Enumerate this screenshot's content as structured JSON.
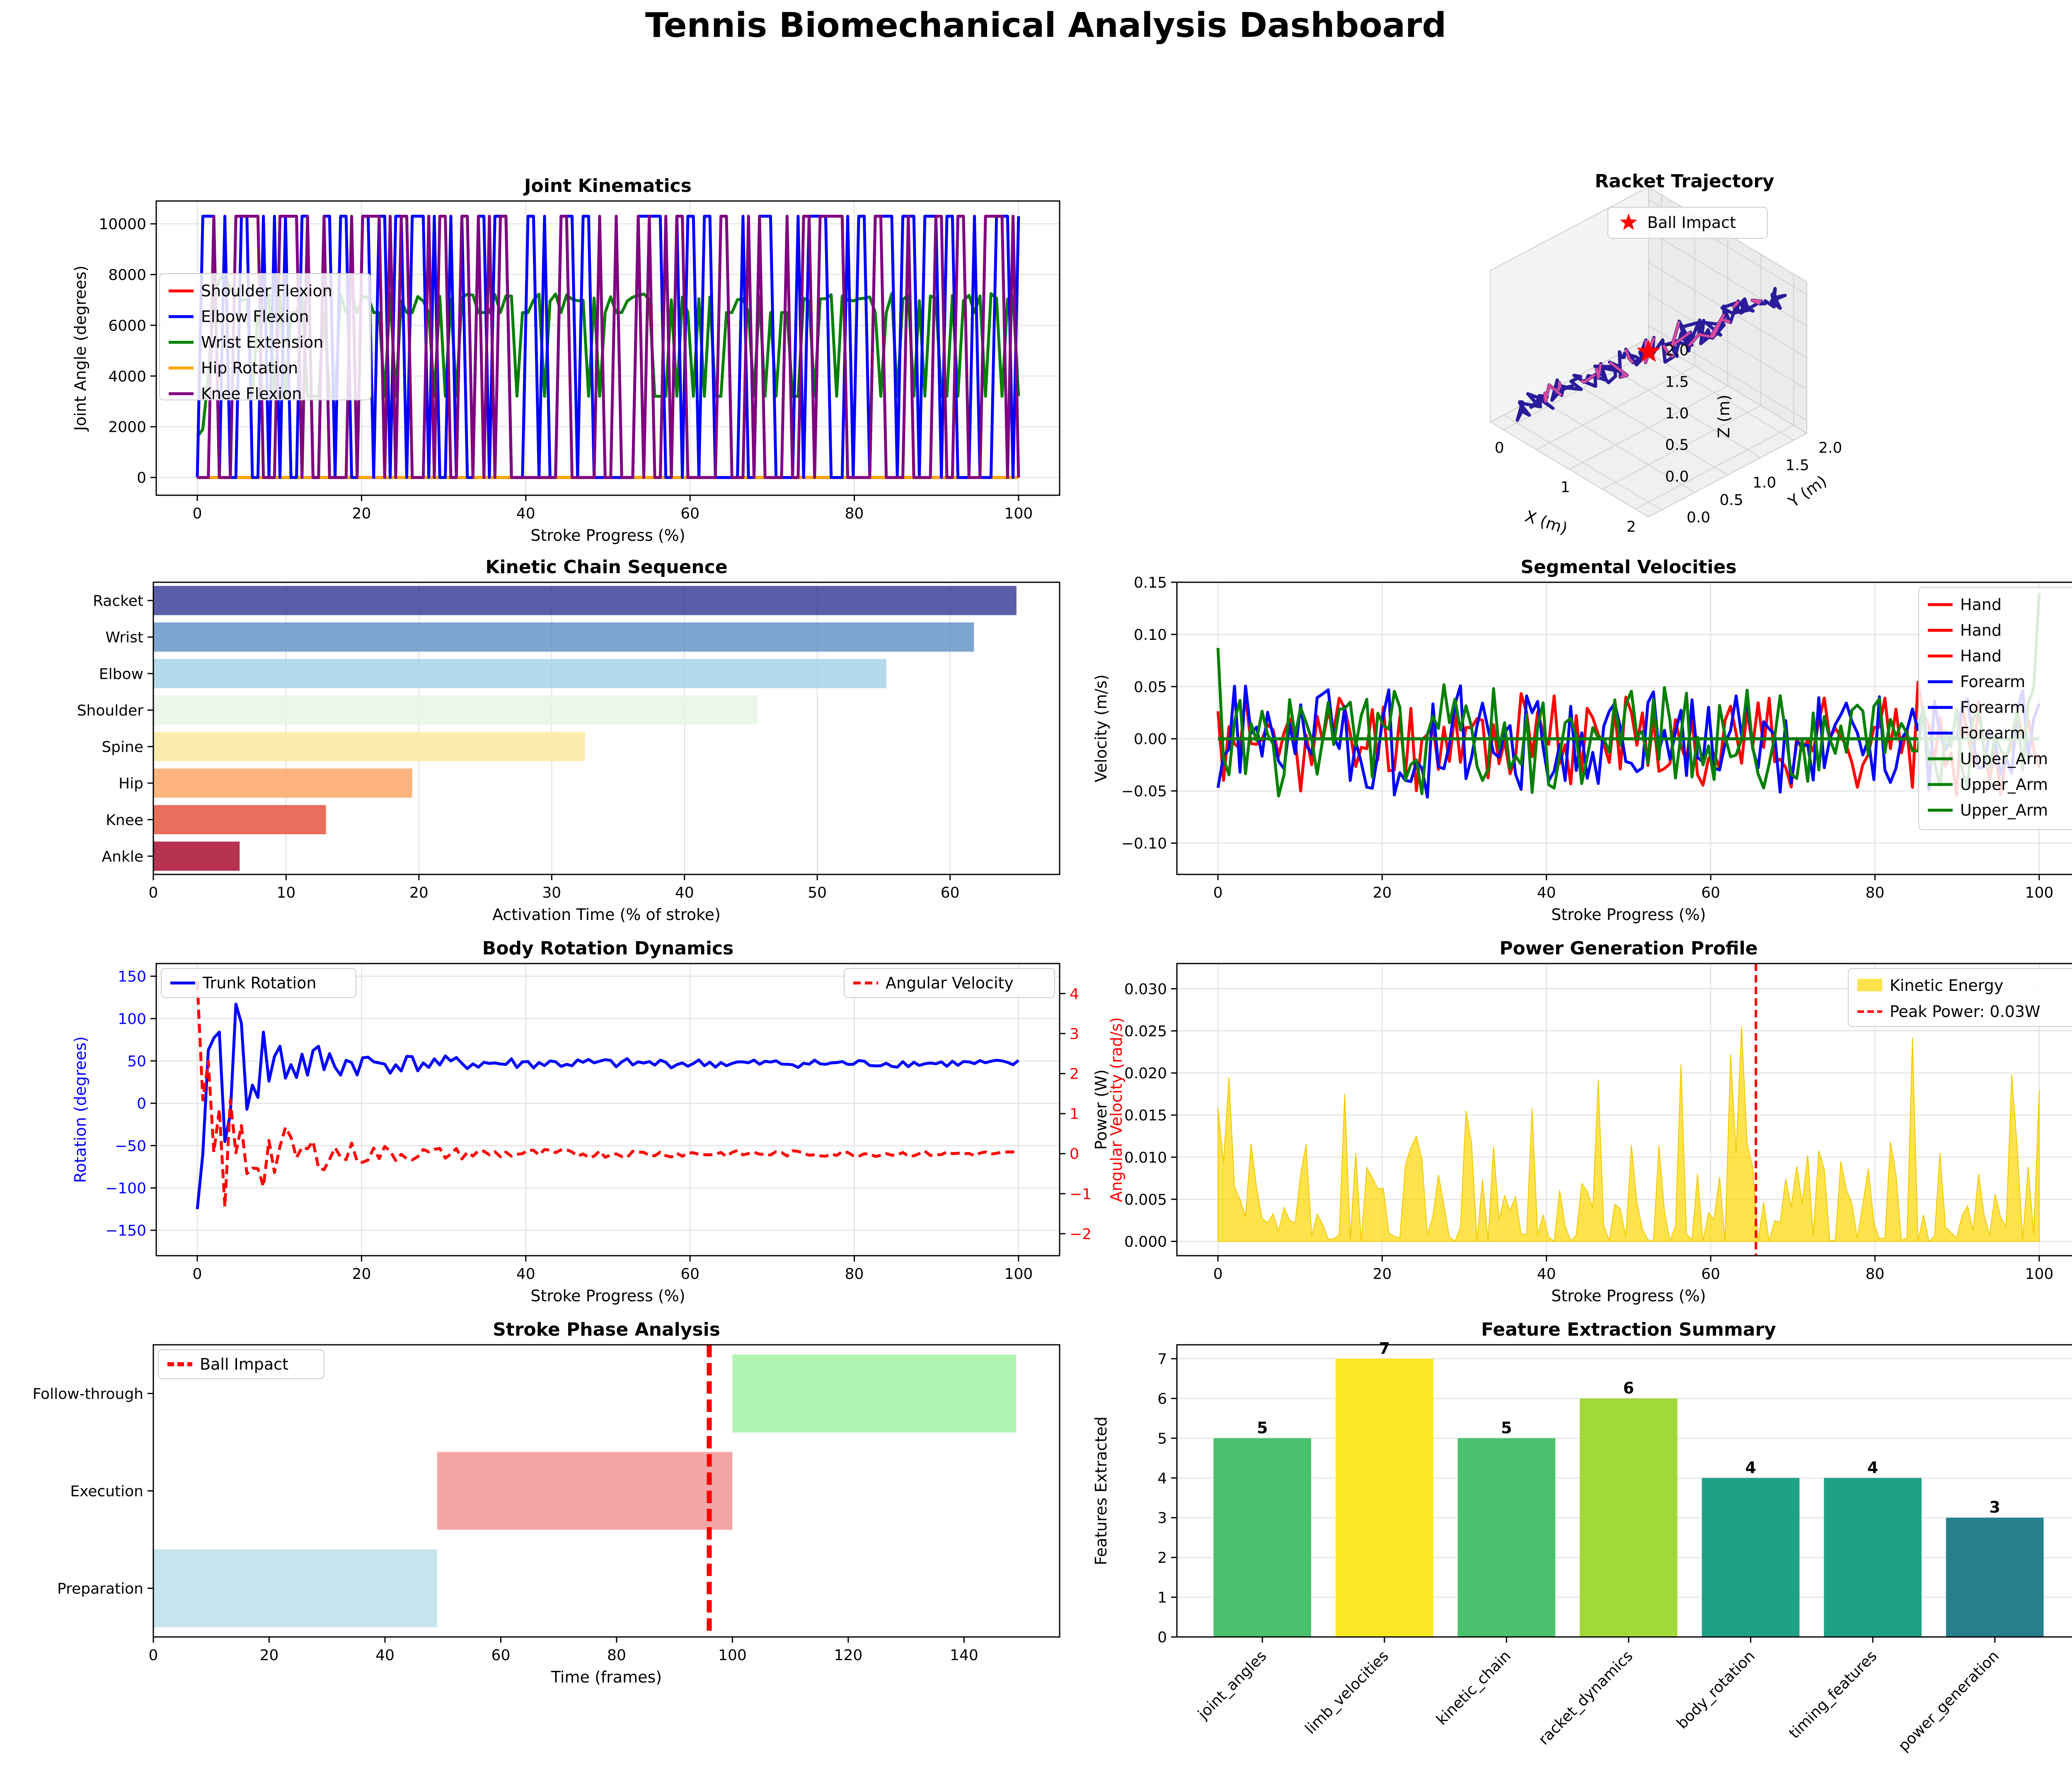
{
  "page_title": "Tennis Biomechanical Analysis Dashboard",
  "chart_data": [
    {
      "id": "joint",
      "type": "line",
      "title": "Joint Kinematics",
      "xlabel": "Stroke Progress (%)",
      "ylabel": "Joint Angle (degrees)",
      "xlim": [
        -5,
        105
      ],
      "ylim": [
        -700,
        10900
      ],
      "xticks": [
        0,
        20,
        40,
        60,
        80,
        100
      ],
      "yticks": [
        0,
        2000,
        4000,
        6000,
        8000,
        10000
      ],
      "grid": true,
      "legend_position": "center-left",
      "n_points": 150,
      "series": [
        {
          "name": "Shoulder Flexion",
          "color": "#ff0000",
          "levels": [
            0
          ],
          "pattern_seed": 1
        },
        {
          "name": "Elbow Flexion",
          "color": "#0000ff",
          "levels": [
            0,
            10300
          ],
          "pattern_seed": 7
        },
        {
          "name": "Wrist Extension",
          "color": "#008000",
          "levels": [
            3200,
            6500,
            7100
          ],
          "start": [
            1600,
            1900,
            4000,
            7000,
            7800,
            8000,
            7400
          ],
          "pattern_seed": 13
        },
        {
          "name": "Hip Rotation",
          "color": "#ffa500",
          "levels": [
            0
          ],
          "pattern_seed": 3
        },
        {
          "name": "Knee Flexion",
          "color": "#800080",
          "levels": [
            0,
            10300
          ],
          "pattern_seed": 29
        }
      ]
    },
    {
      "id": "trajectory",
      "type": "scatter3d",
      "title": "Racket Trajectory",
      "xlabel": "X (m)",
      "ylabel": "Y (m)",
      "zlabel": "Z (m)",
      "xticks": [
        0,
        1,
        2
      ],
      "yticks": [
        0.0,
        0.5,
        1.0,
        1.5,
        2.0
      ],
      "zticks": [
        0.0,
        0.5,
        1.0,
        1.5,
        2.0
      ],
      "legend": [
        "Ball Impact"
      ],
      "impact_point": {
        "x": 1.0,
        "y": 1.0,
        "z": 1.0
      },
      "n_points": 150,
      "path_color": "#2a1b9a",
      "highlight_color": "#d94a9a",
      "impact_color": "#ff0000"
    },
    {
      "id": "chain",
      "type": "bar",
      "orientation": "horizontal",
      "title": "Kinetic Chain Sequence",
      "xlabel": "Activation Time (% of stroke)",
      "categories": [
        "Ankle",
        "Knee",
        "Hip",
        "Spine",
        "Shoulder",
        "Elbow",
        "Wrist",
        "Racket"
      ],
      "values": [
        6.5,
        13,
        19.5,
        32.5,
        45.5,
        55.2,
        61.8,
        65
      ],
      "colors": [
        "#a50026",
        "#e34a33",
        "#fca35d",
        "#fee79a",
        "#e6f5e3",
        "#a2d1e6",
        "#5b8fc6",
        "#313695"
      ],
      "xlim": [
        0,
        68.25
      ],
      "xticks": [
        0,
        10,
        20,
        30,
        40,
        50,
        60
      ],
      "grid": true
    },
    {
      "id": "velocities",
      "type": "line",
      "title": "Segmental Velocities",
      "xlabel": "Stroke Progress (%)",
      "ylabel": "Velocity (m/s)",
      "xlim": [
        -5,
        105
      ],
      "ylim": [
        -0.13,
        0.15
      ],
      "xticks": [
        0,
        20,
        40,
        60,
        80,
        100
      ],
      "yticks": [
        -0.1,
        -0.05,
        0.0,
        0.05,
        0.1,
        0.15
      ],
      "grid": true,
      "legend_position": "top-right",
      "n_points": 150,
      "series": [
        {
          "name": "Hand",
          "color": "#ff0000",
          "amplitude": 0.04,
          "pattern_seed": 11,
          "flat": false
        },
        {
          "name": "Hand",
          "color": "#ff0000",
          "amplitude": 0.0,
          "pattern_seed": 12,
          "flat": true
        },
        {
          "name": "Hand",
          "color": "#ff0000",
          "amplitude": 0.0,
          "pattern_seed": 13,
          "flat": true
        },
        {
          "name": "Forearm",
          "color": "#0000ff",
          "amplitude": 0.045,
          "pattern_seed": 21,
          "flat": false
        },
        {
          "name": "Forearm",
          "color": "#0000ff",
          "amplitude": 0.0,
          "pattern_seed": 22,
          "flat": true
        },
        {
          "name": "Forearm",
          "color": "#0000ff",
          "amplitude": 0.0,
          "pattern_seed": 23,
          "flat": true
        },
        {
          "name": "Upper_Arm",
          "color": "#008000",
          "amplitude": 0.045,
          "pattern_seed": 31,
          "flat": false
        },
        {
          "name": "Upper_Arm",
          "color": "#008000",
          "amplitude": 0.0,
          "pattern_seed": 32,
          "flat": true
        },
        {
          "name": "Upper_Arm",
          "color": "#008000",
          "amplitude": 0.0,
          "pattern_seed": 33,
          "flat": true
        }
      ]
    },
    {
      "id": "rotation",
      "type": "line",
      "title": "Body Rotation Dynamics",
      "xlabel": "Stroke Progress (%)",
      "ylabel": "Rotation (degrees)",
      "ylabel_right": "Angular Velocity (rad/s)",
      "xlim": [
        -5,
        105
      ],
      "ylim": [
        -180,
        165
      ],
      "ylim_right": [
        -2.55,
        4.75
      ],
      "xticks": [
        0,
        20,
        40,
        60,
        80,
        100
      ],
      "yticks": [
        -150,
        -100,
        -50,
        0,
        50,
        100,
        150
      ],
      "yticks_right": [
        -2,
        -1,
        0,
        1,
        2,
        3,
        4
      ],
      "grid": true,
      "n_points": 150,
      "series": [
        {
          "name": "Trunk Rotation",
          "color": "#0000ff",
          "axis": "left",
          "settle": 47,
          "start": -125
        },
        {
          "name": "Angular Velocity",
          "color": "#ff0000",
          "axis": "right",
          "dash": true,
          "settle": 0,
          "start": 4.3
        }
      ],
      "legend_left": [
        "Trunk Rotation"
      ],
      "legend_right": [
        "Angular Velocity"
      ]
    },
    {
      "id": "power",
      "type": "area",
      "title": "Power Generation Profile",
      "xlabel": "Stroke Progress (%)",
      "ylabel": "Power (W)",
      "xlim": [
        -5,
        105
      ],
      "ylim": [
        -0.0017,
        0.033
      ],
      "xticks": [
        0,
        20,
        40,
        60,
        80,
        100
      ],
      "yticks": [
        0.0,
        0.005,
        0.01,
        0.015,
        0.02,
        0.025,
        0.03
      ],
      "grid": true,
      "n_points": 150,
      "peak_x": 65.5,
      "series": [
        {
          "name": "Kinetic Energy",
          "color": "#ffd700"
        }
      ],
      "legend": [
        "Kinetic Energy",
        "Peak Power: 0.03W"
      ],
      "peaks": [
        [
          1.3,
          0.0195
        ],
        [
          15.2,
          0.0175
        ],
        [
          24,
          0.0125
        ],
        [
          30.5,
          0.0155
        ],
        [
          38,
          0.0158
        ],
        [
          46.5,
          0.0192
        ],
        [
          56.5,
          0.021
        ],
        [
          64,
          0.0255
        ],
        [
          62.5,
          0.0222
        ],
        [
          84.5,
          0.0242
        ],
        [
          96.5,
          0.0198
        ],
        [
          100,
          0.018
        ],
        [
          76,
          0.0095
        ],
        [
          88,
          0.0105
        ]
      ]
    },
    {
      "id": "phases",
      "type": "bar",
      "orientation": "horizontal",
      "title": "Stroke Phase Analysis",
      "xlabel": "Time (frames)",
      "categories": [
        "Preparation",
        "Execution",
        "Follow-through"
      ],
      "ranges": [
        [
          0,
          49
        ],
        [
          49,
          100
        ],
        [
          100,
          149
        ]
      ],
      "colors": [
        "#add8e6",
        "#f08080",
        "#90ee90"
      ],
      "impact_frame": 96,
      "legend": [
        "Ball Impact"
      ],
      "xlim": [
        0,
        156.5
      ],
      "xticks": [
        0,
        20,
        40,
        60,
        80,
        100,
        120,
        140
      ]
    },
    {
      "id": "features",
      "type": "bar",
      "title": "Feature Extraction Summary",
      "ylabel": "Features Extracted",
      "categories": [
        "joint_angles",
        "limb_velocities",
        "kinetic_chain",
        "racket_dynamics",
        "body_rotation",
        "timing_features",
        "power_generation"
      ],
      "values": [
        5,
        7,
        5,
        6,
        4,
        4,
        3
      ],
      "colors": [
        "#4ac16d",
        "#fde725",
        "#4ac16d",
        "#a0da39",
        "#1fa187",
        "#1fa187",
        "#277f8e"
      ],
      "ylim": [
        0,
        7.35
      ],
      "yticks": [
        0,
        1,
        2,
        3,
        4,
        5,
        6,
        7
      ],
      "grid": true
    }
  ]
}
